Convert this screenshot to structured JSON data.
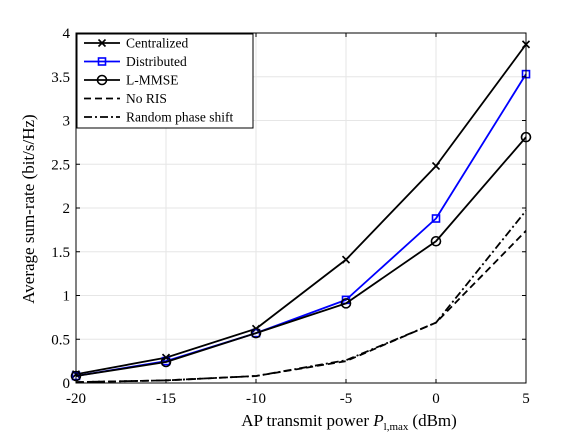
{
  "chart_data": {
    "type": "line",
    "xlabel": "AP transmit power",
    "xlabel_symbol": "P",
    "xlabel_subscript": "l,max",
    "xlabel_unit": "(dBm)",
    "ylabel": "Average sum-rate (bit/s/Hz)",
    "x": [
      -20,
      -15,
      -10,
      -5,
      0,
      5
    ],
    "x_tick_labels": [
      "-20",
      "-15",
      "-10",
      "-5",
      "0",
      "5"
    ],
    "y_tick_labels": [
      "0",
      "0.5",
      "1",
      "1.5",
      "2",
      "2.5",
      "3",
      "3.5",
      "4"
    ],
    "xlim": [
      -20,
      5
    ],
    "ylim": [
      0,
      4
    ],
    "grid": true,
    "legend_position": "top-left",
    "series": [
      {
        "name": "Centralized",
        "values": [
          0.1,
          0.29,
          0.62,
          1.41,
          2.48,
          3.87
        ],
        "color": "#000000",
        "marker": "x",
        "dash": "solid"
      },
      {
        "name": "Distributed",
        "values": [
          0.08,
          0.25,
          0.57,
          0.95,
          1.88,
          3.53
        ],
        "color": "#0000ff",
        "marker": "square",
        "dash": "solid"
      },
      {
        "name": "L-MMSE",
        "values": [
          0.08,
          0.24,
          0.57,
          0.91,
          1.62,
          2.81
        ],
        "color": "#000000",
        "marker": "circle",
        "dash": "solid"
      },
      {
        "name": "No RIS",
        "values": [
          0.01,
          0.03,
          0.08,
          0.25,
          0.69,
          1.74
        ],
        "color": "#000000",
        "marker": "none",
        "dash": "dashed"
      },
      {
        "name": "Random phase shift",
        "values": [
          0.01,
          0.03,
          0.08,
          0.26,
          0.69,
          1.97
        ],
        "color": "#000000",
        "marker": "none",
        "dash": "dashdot"
      }
    ]
  }
}
